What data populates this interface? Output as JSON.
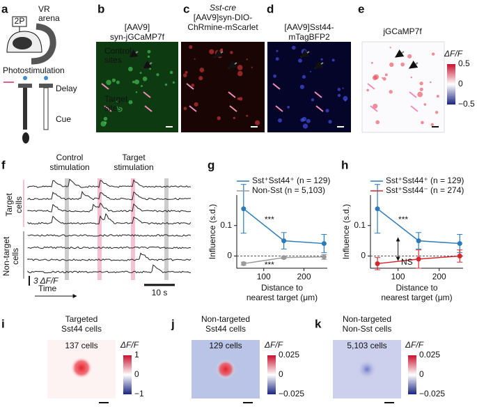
{
  "panels": {
    "a": {
      "label": "a",
      "microscope": "2P",
      "arena": [
        "VR",
        "arena"
      ],
      "stim": "Photostimulation",
      "delay": "Delay",
      "cue": "Cue"
    },
    "b": {
      "label": "b",
      "title": [
        "[AAV9]",
        "syn-jGCaMP7f"
      ],
      "control": [
        "Control",
        "sites"
      ],
      "target": [
        "Target",
        "sites"
      ]
    },
    "c": {
      "label": "c",
      "title": [
        "Sst-cre",
        "[AAV9]syn-DIO-",
        "ChRmine-mScarlet"
      ]
    },
    "d": {
      "label": "d",
      "title": [
        "[AAV9]Sst44-",
        "mTagBFP2"
      ]
    },
    "e": {
      "label": "e",
      "title": "jGCaMP7f",
      "colorbar": {
        "label": "ΔF/F",
        "ticks": [
          "0.5",
          "0",
          "−0.5"
        ]
      }
    },
    "f": {
      "label": "f",
      "control": [
        "Control",
        "stimulation"
      ],
      "target": [
        "Target",
        "stimulation"
      ],
      "target_cells": [
        "Target",
        "cells"
      ],
      "nontarget_cells": [
        "Non-target",
        "cells"
      ],
      "scale_y": "3 ΔF/F",
      "time": "Time",
      "scale_x": "10 s"
    },
    "i": {
      "label": "i",
      "title": [
        "Targeted",
        "Sst44 cells"
      ],
      "count": "137 cells",
      "colorbar": {
        "label": "ΔF/F",
        "ticks": [
          "1",
          "0",
          "−1"
        ]
      }
    },
    "j": {
      "label": "j",
      "title": [
        "Non-targeted",
        "Sst44 cells"
      ],
      "count": "129 cells",
      "colorbar": {
        "label": "ΔF/F",
        "ticks": [
          "0.025",
          "0",
          "−0.025"
        ]
      }
    },
    "k": {
      "label": "k",
      "title": [
        "Non-targeted",
        "Non-Sst cells"
      ],
      "count": "5,103 cells",
      "colorbar": {
        "label": "ΔF/F",
        "ticks": [
          "0.025",
          "0",
          "−0.025"
        ]
      }
    }
  },
  "chart_data": [
    {
      "label": "g",
      "type": "line",
      "x": [
        50,
        150,
        250
      ],
      "xlim": [
        33,
        258
      ],
      "xticks": [
        100,
        200
      ],
      "ylim": [
        -0.04,
        0.2
      ],
      "yticks": [
        0,
        0.1
      ],
      "zero_line": true,
      "ylabel": "Influence (s.d.)",
      "xlabel": [
        "Distance to",
        "nearest target (μm)"
      ],
      "annotations": [
        "***",
        "***"
      ],
      "series": [
        {
          "name": "Sst⁺Sst44⁺ (n = 129)",
          "color": "#2b7bba",
          "values": [
            0.155,
            0.05,
            0.041
          ],
          "errors": [
            0.08,
            0.027,
            0.03
          ]
        },
        {
          "name": "Non-Sst (n = 5,103)",
          "color": "#9a9a9a",
          "values": [
            -0.025,
            -0.005,
            -0.003
          ],
          "errors": [
            0.005,
            0.004,
            0.008
          ]
        }
      ]
    },
    {
      "label": "h",
      "type": "line",
      "x": [
        50,
        150,
        250
      ],
      "xlim": [
        33,
        258
      ],
      "xticks": [
        100,
        200
      ],
      "ylim": [
        -0.04,
        0.2
      ],
      "yticks": [
        0,
        0.1
      ],
      "zero_line": true,
      "ylabel": "Influence (s.d.)",
      "xlabel": [
        "Distance to",
        "nearest target (μm)"
      ],
      "annotations": [
        "***",
        "NS"
      ],
      "series": [
        {
          "name": "Sst⁺Sst44⁺ (n = 129)",
          "color": "#2b7bba",
          "values": [
            0.155,
            0.05,
            0.041
          ],
          "errors": [
            0.08,
            0.027,
            0.03
          ]
        },
        {
          "name": "Sst⁺Sst44⁻ (n = 274)",
          "color": "#d6262c",
          "values": [
            -0.025,
            -0.01,
            0.0
          ],
          "errors": [
            0.02,
            0.03,
            0.02
          ]
        }
      ]
    }
  ]
}
